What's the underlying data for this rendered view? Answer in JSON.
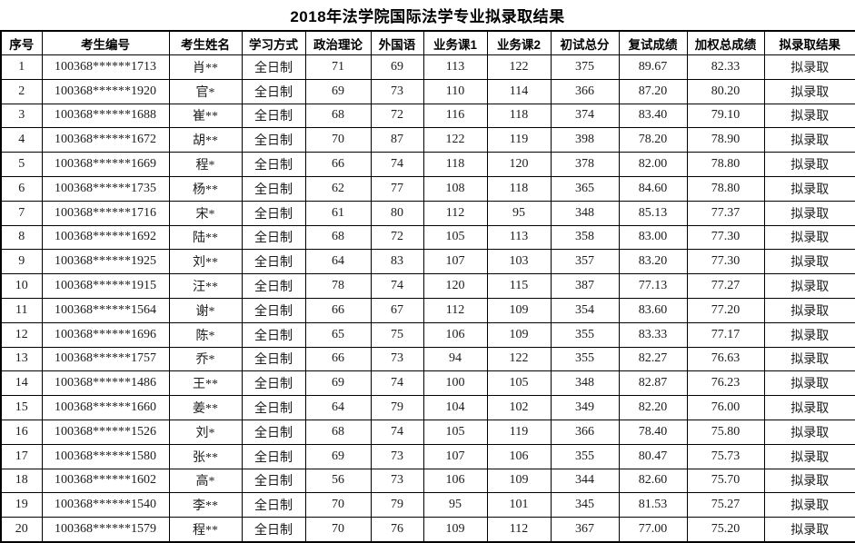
{
  "title": "2018年法学院国际法学专业拟录取结果",
  "table": {
    "columns": [
      "序号",
      "考生编号",
      "考生姓名",
      "学习方式",
      "政治理论",
      "外国语",
      "业务课1",
      "业务课2",
      "初试总分",
      "复试成绩",
      "加权总成绩",
      "拟录取结果"
    ],
    "rows": [
      [
        "1",
        "100368******1713",
        "肖**",
        "全日制",
        "71",
        "69",
        "113",
        "122",
        "375",
        "89.67",
        "82.33",
        "拟录取"
      ],
      [
        "2",
        "100368******1920",
        "官*",
        "全日制",
        "69",
        "73",
        "110",
        "114",
        "366",
        "87.20",
        "80.20",
        "拟录取"
      ],
      [
        "3",
        "100368******1688",
        "崔**",
        "全日制",
        "68",
        "72",
        "116",
        "118",
        "374",
        "83.40",
        "79.10",
        "拟录取"
      ],
      [
        "4",
        "100368******1672",
        "胡**",
        "全日制",
        "70",
        "87",
        "122",
        "119",
        "398",
        "78.20",
        "78.90",
        "拟录取"
      ],
      [
        "5",
        "100368******1669",
        "程*",
        "全日制",
        "66",
        "74",
        "118",
        "120",
        "378",
        "82.00",
        "78.80",
        "拟录取"
      ],
      [
        "6",
        "100368******1735",
        "杨**",
        "全日制",
        "62",
        "77",
        "108",
        "118",
        "365",
        "84.60",
        "78.80",
        "拟录取"
      ],
      [
        "7",
        "100368******1716",
        "宋*",
        "全日制",
        "61",
        "80",
        "112",
        "95",
        "348",
        "85.13",
        "77.37",
        "拟录取"
      ],
      [
        "8",
        "100368******1692",
        "陆**",
        "全日制",
        "68",
        "72",
        "105",
        "113",
        "358",
        "83.00",
        "77.30",
        "拟录取"
      ],
      [
        "9",
        "100368******1925",
        "刘**",
        "全日制",
        "64",
        "83",
        "107",
        "103",
        "357",
        "83.20",
        "77.30",
        "拟录取"
      ],
      [
        "10",
        "100368******1915",
        "汪**",
        "全日制",
        "78",
        "74",
        "120",
        "115",
        "387",
        "77.13",
        "77.27",
        "拟录取"
      ],
      [
        "11",
        "100368******1564",
        "谢*",
        "全日制",
        "66",
        "67",
        "112",
        "109",
        "354",
        "83.60",
        "77.20",
        "拟录取"
      ],
      [
        "12",
        "100368******1696",
        "陈*",
        "全日制",
        "65",
        "75",
        "106",
        "109",
        "355",
        "83.33",
        "77.17",
        "拟录取"
      ],
      [
        "13",
        "100368******1757",
        "乔*",
        "全日制",
        "66",
        "73",
        "94",
        "122",
        "355",
        "82.27",
        "76.63",
        "拟录取"
      ],
      [
        "14",
        "100368******1486",
        "王**",
        "全日制",
        "69",
        "74",
        "100",
        "105",
        "348",
        "82.87",
        "76.23",
        "拟录取"
      ],
      [
        "15",
        "100368******1660",
        "姜**",
        "全日制",
        "64",
        "79",
        "104",
        "102",
        "349",
        "82.20",
        "76.00",
        "拟录取"
      ],
      [
        "16",
        "100368******1526",
        "刘*",
        "全日制",
        "68",
        "74",
        "105",
        "119",
        "366",
        "78.40",
        "75.80",
        "拟录取"
      ],
      [
        "17",
        "100368******1580",
        "张**",
        "全日制",
        "69",
        "73",
        "107",
        "106",
        "355",
        "80.47",
        "75.73",
        "拟录取"
      ],
      [
        "18",
        "100368******1602",
        "高*",
        "全日制",
        "56",
        "73",
        "106",
        "109",
        "344",
        "82.60",
        "75.70",
        "拟录取"
      ],
      [
        "19",
        "100368******1540",
        "李**",
        "全日制",
        "70",
        "79",
        "95",
        "101",
        "345",
        "81.53",
        "75.27",
        "拟录取"
      ],
      [
        "20",
        "100368******1579",
        "程**",
        "全日制",
        "70",
        "76",
        "109",
        "112",
        "367",
        "77.00",
        "75.20",
        "拟录取"
      ]
    ]
  }
}
